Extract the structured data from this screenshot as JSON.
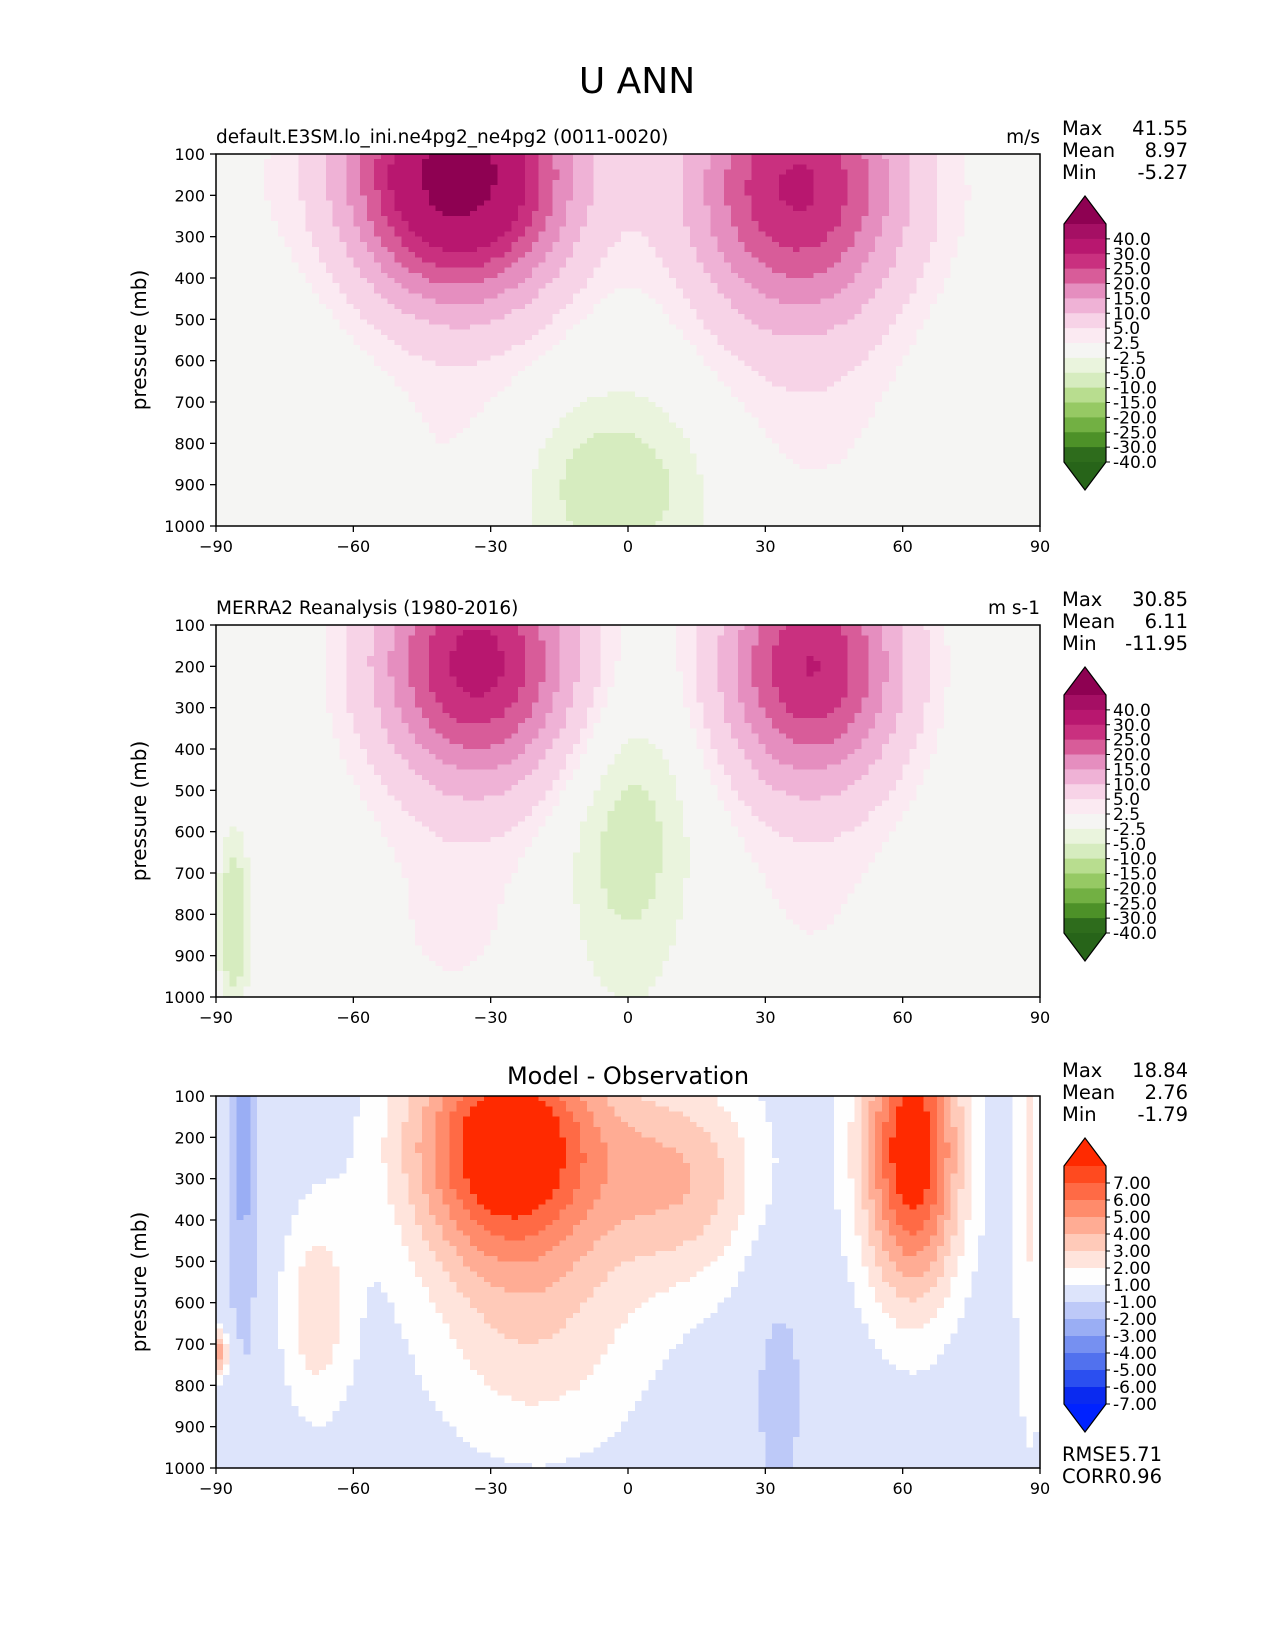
{
  "figure": {
    "title": "U ANN"
  },
  "axis_label": "pressure (mb)",
  "chart_data": [
    {
      "type": "heatmap",
      "panel": "test",
      "title_left": "default.E3SM.lo_ini.ne4pg2_ne4pg2 (0011-0020)",
      "title_center": "",
      "title_right": "m/s",
      "ylabel": "pressure (mb)",
      "xlim": [
        -90,
        90
      ],
      "ylim": [
        1000,
        100
      ],
      "y_scale": "linear, inverted",
      "x_ticks": [
        "−90",
        "−60",
        "−30",
        "0",
        "30",
        "60",
        "90"
      ],
      "y_ticks": [
        "100",
        "200",
        "300",
        "400",
        "500",
        "600",
        "700",
        "800",
        "900",
        "1000"
      ],
      "stats": [
        {
          "label": "Max",
          "value": "41.55"
        },
        {
          "label": "Mean",
          "value": "8.97"
        },
        {
          "label": "Min",
          "value": "-5.27"
        }
      ],
      "colorbar": {
        "labels": [
          "40.0",
          "30.0",
          "25.0",
          "20.0",
          "15.0",
          "10.0",
          "5.0",
          "2.5",
          "-2.5",
          "-5.0",
          "-10.0",
          "-15.0",
          "-20.0",
          "-25.0",
          "-30.0",
          "-40.0"
        ],
        "colors": [
          "#8e0152",
          "#a50f64",
          "#b8176f",
          "#c9307f",
          "#d85c99",
          "#e58ebf",
          "#efb2d6",
          "#f7d3e7",
          "#fbeaf2",
          "#f5f5f3",
          "#eaf4dd",
          "#d6ecbf",
          "#b8dd8f",
          "#96c964",
          "#72b043",
          "#4d9128",
          "#2e6c1c",
          "#276419"
        ]
      },
      "features": [
        {
          "name": "southern jet",
          "lat": -38,
          "p": 170,
          "value": 41.55
        },
        {
          "name": "northern jet",
          "lat": 37,
          "p": 200,
          "value": 30
        },
        {
          "name": "equatorial low-level easterlies",
          "lat": -10,
          "p": 900,
          "value": -5
        }
      ]
    },
    {
      "type": "heatmap",
      "panel": "reference",
      "title_left": "MERRA2 Reanalysis (1980-2016)",
      "title_center": "",
      "title_right": "m s-1",
      "ylabel": "pressure (mb)",
      "xlim": [
        -90,
        90
      ],
      "ylim": [
        1000,
        100
      ],
      "y_scale": "linear, inverted",
      "x_ticks": [
        "−90",
        "−60",
        "−30",
        "0",
        "30",
        "60",
        "90"
      ],
      "y_ticks": [
        "100",
        "200",
        "300",
        "400",
        "500",
        "600",
        "700",
        "800",
        "900",
        "1000"
      ],
      "stats": [
        {
          "label": "Max",
          "value": "30.85"
        },
        {
          "label": "Mean",
          "value": "6.11"
        },
        {
          "label": "Min",
          "value": "-11.95"
        }
      ],
      "colorbar": {
        "labels": [
          "40.0",
          "30.0",
          "25.0",
          "20.0",
          "15.0",
          "10.0",
          "5.0",
          "2.5",
          "-2.5",
          "-5.0",
          "-10.0",
          "-15.0",
          "-20.0",
          "-25.0",
          "-30.0",
          "-40.0"
        ],
        "colors": [
          "#8e0152",
          "#a50f64",
          "#b8176f",
          "#c9307f",
          "#d85c99",
          "#e58ebf",
          "#efb2d6",
          "#f7d3e7",
          "#fbeaf2",
          "#f5f5f3",
          "#eaf4dd",
          "#d6ecbf",
          "#b8dd8f",
          "#96c964",
          "#72b043",
          "#4d9128",
          "#2e6c1c",
          "#276419"
        ]
      },
      "features": [
        {
          "name": "southern jet",
          "lat": -32,
          "p": 200,
          "value": 30.85
        },
        {
          "name": "northern jet",
          "lat": 40,
          "p": 200,
          "value": 30
        },
        {
          "name": "equatorial easterlies",
          "lat": 0,
          "p": 600,
          "value": -5
        },
        {
          "name": "antarctic surface easterlies",
          "lat": -85,
          "p": 800,
          "value": -11.95
        }
      ]
    },
    {
      "type": "heatmap",
      "panel": "difference",
      "title_left": "",
      "title_center": "Model - Observation",
      "title_right": "",
      "ylabel": "pressure (mb)",
      "xlim": [
        -90,
        90
      ],
      "ylim": [
        1000,
        100
      ],
      "y_scale": "linear, inverted",
      "x_ticks": [
        "−90",
        "−60",
        "−30",
        "0",
        "30",
        "60",
        "90"
      ],
      "y_ticks": [
        "100",
        "200",
        "300",
        "400",
        "500",
        "600",
        "700",
        "800",
        "900",
        "1000"
      ],
      "stats": [
        {
          "label": "Max",
          "value": "18.84"
        },
        {
          "label": "Mean",
          "value": "2.76"
        },
        {
          "label": "Min",
          "value": "-1.79"
        }
      ],
      "metrics": [
        {
          "label": "RMSE",
          "value": "5.71"
        },
        {
          "label": "CORR",
          "value": "0.96"
        }
      ],
      "colorbar": {
        "labels": [
          "7.00",
          "6.00",
          "5.00",
          "4.00",
          "3.00",
          "2.00",
          "1.00",
          "-1.00",
          "-2.00",
          "-3.00",
          "-4.00",
          "-5.00",
          "-6.00",
          "-7.00"
        ],
        "colors": [
          "#ff2a00",
          "#ff4a1f",
          "#ff6a45",
          "#ff8b6b",
          "#ffac94",
          "#ffcab9",
          "#ffe4dc",
          "#fefefe",
          "#dde4fb",
          "#bdc9f8",
          "#9aaef4",
          "#7690f1",
          "#5171ee",
          "#2b4ff0",
          "#0a2af0",
          "#0022ff"
        ]
      },
      "features": [
        {
          "name": "southern midlatitude positive bias",
          "lat": -28,
          "p": 250,
          "value": 18.84
        },
        {
          "name": "northern midlatitude positive bias",
          "lat": 60,
          "p": 250,
          "value": 7
        },
        {
          "name": "tropical negative bias",
          "lat": 33,
          "p": 800,
          "value": -1.79
        }
      ]
    }
  ]
}
